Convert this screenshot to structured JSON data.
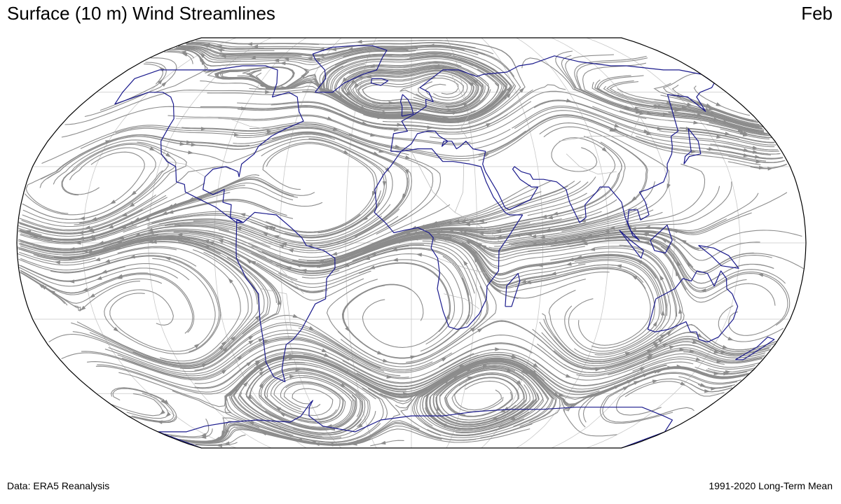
{
  "header": {
    "title": "Surface (10 m) Wind Streamlines",
    "month": "Feb"
  },
  "footer": {
    "source": "Data: ERA5 Reanalysis",
    "period": "1991-2020 Long-Term Mean"
  },
  "map": {
    "projection": "Robinson",
    "graticule_lon_step_deg": 30,
    "graticule_lat_step_deg": 30,
    "colors": {
      "streamline": "#8c8c8c",
      "coastline": "#1a1a8c",
      "border": "#b4b4b4",
      "graticule": "#c8c8c8",
      "frame": "#000000"
    }
  }
}
